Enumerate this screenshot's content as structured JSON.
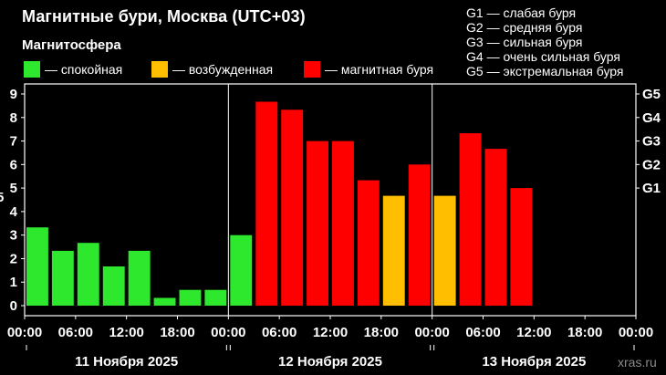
{
  "chart_data": {
    "type": "bar",
    "title": "Магнитные бури, Москва (UTC+03)",
    "legend_heading": "Магнитосфера",
    "legend": [
      {
        "label": "— спокойная",
        "color": "#2ee82e"
      },
      {
        "label": "— возбужденная",
        "color": "#ffbf00"
      },
      {
        "label": "— магнитная буря",
        "color": "#ff0000"
      }
    ],
    "g_scale_legend": [
      "G1 — слабая буря",
      "G2 — средняя буря",
      "G3 — сильная буря",
      "G4 — очень сильная буря",
      "G5 — экстремальная буря"
    ],
    "ylim": [
      0,
      9
    ],
    "y_ticks": [
      "0",
      "1",
      "2",
      "3",
      "4",
      "5",
      "6",
      "7",
      "8",
      "9"
    ],
    "g_ticks": [
      {
        "value": 5,
        "label": "G1"
      },
      {
        "value": 6,
        "label": "G2"
      },
      {
        "value": 7,
        "label": "G3"
      },
      {
        "value": 8,
        "label": "G4"
      },
      {
        "value": 9,
        "label": "G5"
      }
    ],
    "x_tick_labels": [
      "00:00",
      "06:00",
      "12:00",
      "18:00",
      "00:00",
      "06:00",
      "12:00",
      "18:00",
      "00:00",
      "06:00",
      "12:00",
      "18:00",
      "00:00"
    ],
    "days": [
      "11 Ноября 2025",
      "12 Ноября 2025",
      "13 Ноября 2025"
    ],
    "slots_per_day": 8,
    "values": [
      3.33,
      2.33,
      2.67,
      1.67,
      2.33,
      0.33,
      0.67,
      0.67,
      3.0,
      8.67,
      8.33,
      7.0,
      7.0,
      5.33,
      4.67,
      6.0,
      4.67,
      7.33,
      6.67,
      5.0,
      null,
      null,
      null,
      null
    ],
    "status": [
      "calm",
      "calm",
      "calm",
      "calm",
      "calm",
      "calm",
      "calm",
      "calm",
      "calm",
      "storm",
      "storm",
      "storm",
      "storm",
      "storm",
      "active",
      "storm",
      "active",
      "storm",
      "storm",
      "storm",
      null,
      null,
      null,
      null
    ],
    "status_colors": {
      "calm": "#2ee82e",
      "active": "#ffbf00",
      "storm": "#ff0000"
    },
    "grid": false
  },
  "watermark": "xras.ru"
}
